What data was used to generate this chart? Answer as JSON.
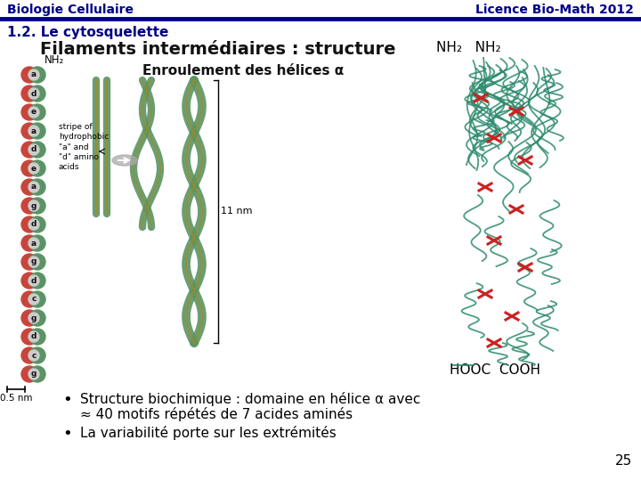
{
  "header_left": "Biologie Cellulaire",
  "header_right": "Licence Bio-Math 2012",
  "header_line_color": "#00008B",
  "section_title": "1.2. Le cytosquelette",
  "slide_title": "Filaments intermédiaires : structure",
  "subtitle": "Enroulement des hélices α",
  "bullet1": "Structure biochimique : domaine en hélice α avec",
  "bullet1b": "≈ 40 motifs répétés de 7 acides aminés",
  "bullet2": "La variabilité porte sur les extrémités",
  "page_number": "25",
  "bg_color": "#ffffff",
  "header_text_color": "#00008B",
  "section_color": "#000080",
  "body_color": "#000000",
  "nh2_label_right": "NH₂   NH₂",
  "hooc_label": "HOOC  COOH",
  "nm05_label": "0.5 nm",
  "nm11_label": "11 nm",
  "nh2_label_left": "NH₂",
  "stripe_text": "stripe of\nhydrophobic\n\"a\" and\n\"d\" amino\nacids"
}
